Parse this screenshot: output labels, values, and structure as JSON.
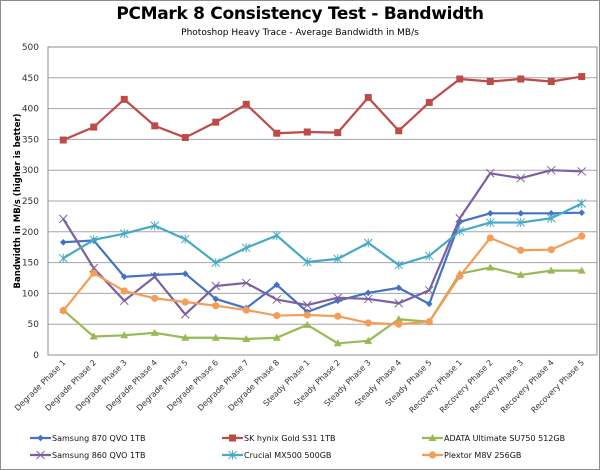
{
  "chart_data": {
    "type": "line",
    "title": "PCMark 8 Consistency Test - Bandwidth",
    "subtitle": "Photoshop Heavy Trace - Average Bandwidth in MB/s",
    "xlabel": "",
    "ylabel": "Bandwidth in MB/s (higher is better)",
    "ylim": [
      0,
      500
    ],
    "yticks": [
      0,
      50,
      100,
      150,
      200,
      250,
      300,
      350,
      400,
      450,
      500
    ],
    "grid": true,
    "legend_position": "bottom",
    "categories": [
      "Degrade Phase 1",
      "Degrade Phase 2",
      "Degrade Phase 3",
      "Degrade Phase 4",
      "Degrade Phase 5",
      "Degrade Phase 6",
      "Degrade Phase 7",
      "Degrade Phase 8",
      "Steady Phase 1",
      "Steady Phase 2",
      "Steady Phase 3",
      "Steady Phase 4",
      "Steady Phase 5",
      "Recovery Phase 1",
      "Recovery Phase 2",
      "Recovery Phase 3",
      "Recovery Phase 4",
      "Recovery Phase 5"
    ],
    "series": [
      {
        "name": "Samsung 870 QVO 1TB",
        "color": "#4472c4",
        "marker": "diamond",
        "values": [
          183,
          186,
          127,
          130,
          132,
          91,
          76,
          114,
          70,
          88,
          101,
          109,
          83,
          216,
          230,
          230,
          230,
          231
        ]
      },
      {
        "name": "SK hynix Gold S31 1TB",
        "color": "#be4b48",
        "marker": "square",
        "values": [
          349,
          370,
          415,
          372,
          353,
          378,
          407,
          360,
          362,
          361,
          418,
          364,
          410,
          448,
          444,
          448,
          444,
          452
        ]
      },
      {
        "name": "ADATA Ultimate SU750 512GB",
        "color": "#98b954",
        "marker": "triangle",
        "values": [
          73,
          30,
          32,
          36,
          28,
          28,
          26,
          28,
          49,
          19,
          23,
          58,
          54,
          132,
          142,
          130,
          137,
          137
        ]
      },
      {
        "name": "Samsung 860 QVO 1TB",
        "color": "#7d60a0",
        "marker": "x",
        "values": [
          221,
          141,
          88,
          127,
          66,
          112,
          117,
          90,
          81,
          93,
          91,
          84,
          105,
          222,
          295,
          287,
          300,
          298
        ]
      },
      {
        "name": "Crucial MX500 500GB",
        "color": "#46aac5",
        "marker": "star",
        "values": [
          157,
          187,
          197,
          210,
          188,
          150,
          174,
          194,
          151,
          156,
          182,
          146,
          161,
          201,
          215,
          215,
          222,
          246
        ]
      },
      {
        "name": "Plextor M8V 256GB",
        "color": "#f59d56",
        "marker": "circle",
        "values": [
          72,
          133,
          104,
          92,
          86,
          80,
          73,
          64,
          65,
          63,
          52,
          50,
          54,
          128,
          190,
          170,
          171,
          193
        ]
      }
    ]
  }
}
